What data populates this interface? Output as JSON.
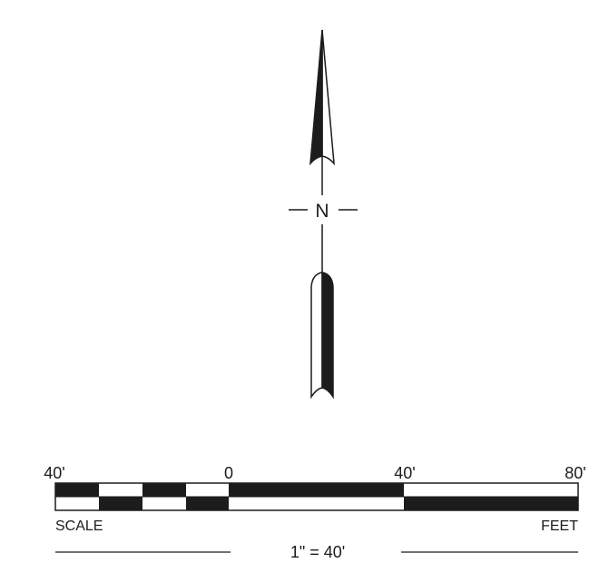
{
  "north_arrow": {
    "letter": "N"
  },
  "scale_bar": {
    "tick_labels": [
      "40'",
      "0",
      "40'",
      "80'"
    ],
    "left_caption": "SCALE",
    "right_caption": "FEET",
    "ratio": "1\" = 40'"
  },
  "colors": {
    "ink": "#1c1c1c",
    "paper": "#ffffff"
  }
}
